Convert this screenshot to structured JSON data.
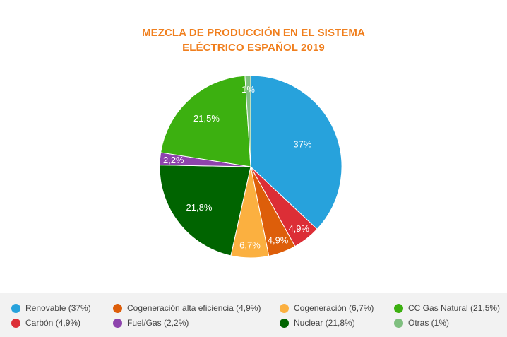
{
  "title_line1": "MEZCLA DE PRODUCCIÓN EN EL SISTEMA",
  "title_line2": "ELÉCTRICO ESPAÑOL 2019",
  "colors": {
    "title": "#f07f1e",
    "legend_bg": "#f2f2f2"
  },
  "chart_data": {
    "type": "pie",
    "title": "MEZCLA DE PRODUCCIÓN EN EL SISTEMA ELÉCTRICO ESPAÑOL 2019",
    "slices": [
      {
        "label": "Renovable",
        "value": 37.0,
        "display": "37%",
        "color": "#27a2dc"
      },
      {
        "label": "Carbón",
        "value": 4.9,
        "display": "4,9%",
        "color": "#dc2e36"
      },
      {
        "label": "Cogeneración alta eficiencia",
        "value": 4.9,
        "display": "4,9%",
        "color": "#dd5e0a"
      },
      {
        "label": "Cogeneración",
        "value": 6.7,
        "display": "6,7%",
        "color": "#fbb040"
      },
      {
        "label": "Nuclear",
        "value": 21.8,
        "display": "21,8%",
        "color": "#006400"
      },
      {
        "label": "Fuel/Gas",
        "value": 2.2,
        "display": "2,2%",
        "color": "#8e44ad"
      },
      {
        "label": "CC Gas Natural",
        "value": 21.5,
        "display": "21,5%",
        "color": "#3cb010"
      },
      {
        "label": "Otras",
        "value": 1.0,
        "display": "1%",
        "color": "#7fbf7f"
      }
    ],
    "legend_placement": "bottom",
    "legend": [
      {
        "text": "Renovable (37%)",
        "color": "#27a2dc"
      },
      {
        "text": "Cogeneración alta eficiencia (4,9%)",
        "color": "#dd5e0a"
      },
      {
        "text": "Cogeneración (6,7%)",
        "color": "#fbb040"
      },
      {
        "text": "CC Gas Natural (21,5%)",
        "color": "#3cb010"
      },
      {
        "text": "Carbón (4,9%)",
        "color": "#dc2e36"
      },
      {
        "text": "Fuel/Gas (2,2%)",
        "color": "#8e44ad"
      },
      {
        "text": "Nuclear (21,8%)",
        "color": "#006400"
      },
      {
        "text": "Otras (1%)",
        "color": "#7fbf7f"
      }
    ]
  }
}
